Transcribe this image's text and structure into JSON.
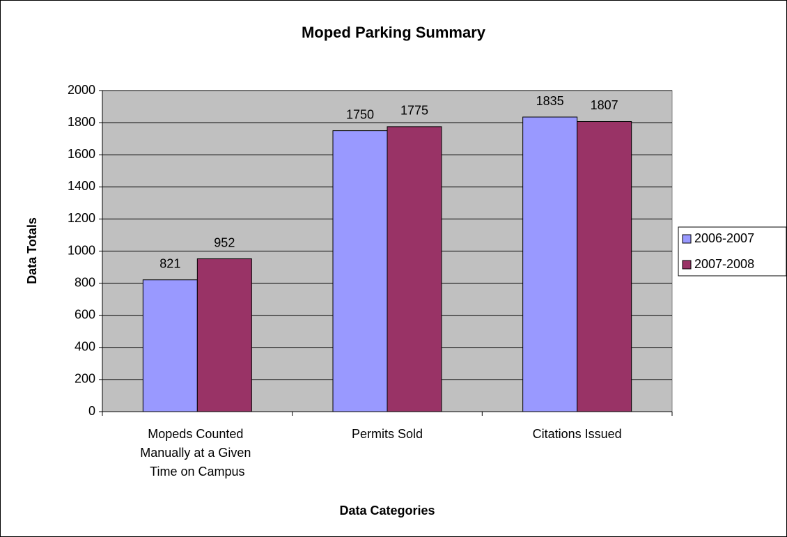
{
  "chart_data": {
    "type": "bar",
    "title": "Moped Parking Summary",
    "x_label": "Data Categories",
    "y_label": "Data Totals",
    "categories": [
      "Mopeds Counted Manually at a Given Time on Campus",
      "Permits Sold",
      "Citations Issued"
    ],
    "series": [
      {
        "name": "2006-2007",
        "color": "#9999ff",
        "values": [
          821,
          1750,
          1835
        ]
      },
      {
        "name": "2007-2008",
        "color": "#993366",
        "values": [
          952,
          1775,
          1807
        ]
      }
    ],
    "ylim": [
      0,
      2000
    ],
    "yticks": [
      0,
      200,
      400,
      600,
      800,
      1000,
      1200,
      1400,
      1600,
      1800,
      2000
    ],
    "grid": true,
    "legend": "right"
  }
}
